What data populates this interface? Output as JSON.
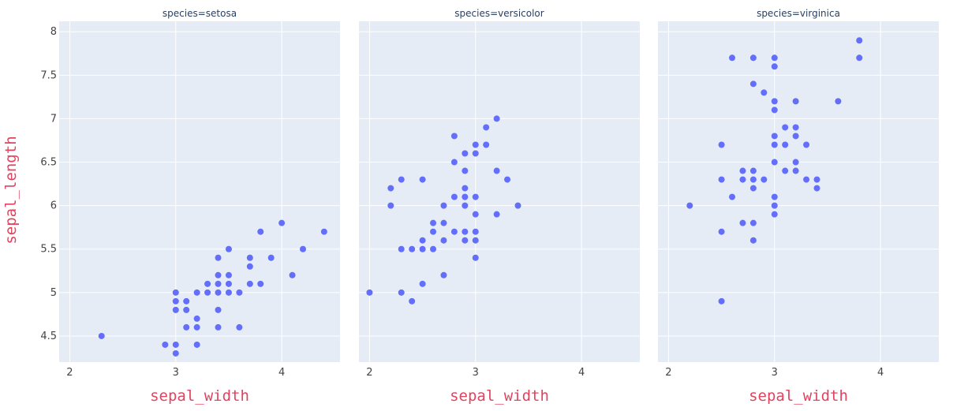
{
  "chart_data": {
    "type": "scatter",
    "xlabel": "sepal_width",
    "ylabel": "sepal_length",
    "xlim": [
      1.9,
      4.55
    ],
    "ylim": [
      4.2,
      8.12
    ],
    "xticks": [
      2,
      3,
      4
    ],
    "yticks": [
      4.5,
      5,
      5.5,
      6,
      6.5,
      7,
      7.5,
      8
    ],
    "ytick_labels": [
      "4.5",
      "5",
      "5.5",
      "6",
      "6.5",
      "7",
      "7.5",
      "8"
    ],
    "marker_color": "#636efa",
    "plot_bg": "#e5ecf6",
    "grid_color": "#ffffff",
    "grid": true,
    "facets": [
      {
        "title": "species=setosa",
        "points": [
          [
            2.3,
            4.5
          ],
          [
            2.9,
            4.4
          ],
          [
            3.0,
            4.4
          ],
          [
            3.0,
            4.3
          ],
          [
            3.2,
            4.4
          ],
          [
            3.0,
            4.8
          ],
          [
            3.0,
            4.9
          ],
          [
            3.0,
            5.0
          ],
          [
            3.1,
            4.9
          ],
          [
            3.1,
            4.8
          ],
          [
            3.1,
            4.6
          ],
          [
            3.2,
            4.6
          ],
          [
            3.2,
            4.7
          ],
          [
            3.2,
            5.0
          ],
          [
            3.3,
            5.0
          ],
          [
            3.3,
            5.1
          ],
          [
            3.4,
            4.6
          ],
          [
            3.4,
            4.8
          ],
          [
            3.4,
            5.0
          ],
          [
            3.4,
            5.1
          ],
          [
            3.4,
            5.2
          ],
          [
            3.4,
            5.4
          ],
          [
            3.5,
            5.0
          ],
          [
            3.5,
            5.1
          ],
          [
            3.5,
            5.2
          ],
          [
            3.5,
            5.5
          ],
          [
            3.6,
            4.6
          ],
          [
            3.6,
            5.0
          ],
          [
            3.7,
            5.1
          ],
          [
            3.7,
            5.3
          ],
          [
            3.7,
            5.4
          ],
          [
            3.8,
            5.1
          ],
          [
            3.8,
            5.7
          ],
          [
            3.9,
            5.4
          ],
          [
            4.0,
            5.8
          ],
          [
            4.1,
            5.2
          ],
          [
            4.2,
            5.5
          ],
          [
            4.4,
            5.7
          ]
        ]
      },
      {
        "title": "species=versicolor",
        "points": [
          [
            2.0,
            5.0
          ],
          [
            2.2,
            6.0
          ],
          [
            2.2,
            6.2
          ],
          [
            2.3,
            5.0
          ],
          [
            2.3,
            5.5
          ],
          [
            2.3,
            6.3
          ],
          [
            2.4,
            4.9
          ],
          [
            2.4,
            5.5
          ],
          [
            2.5,
            5.1
          ],
          [
            2.5,
            5.5
          ],
          [
            2.5,
            5.6
          ],
          [
            2.5,
            6.3
          ],
          [
            2.6,
            5.5
          ],
          [
            2.6,
            5.7
          ],
          [
            2.6,
            5.8
          ],
          [
            2.7,
            5.2
          ],
          [
            2.7,
            5.6
          ],
          [
            2.7,
            5.8
          ],
          [
            2.7,
            6.0
          ],
          [
            2.8,
            5.7
          ],
          [
            2.8,
            6.1
          ],
          [
            2.8,
            6.5
          ],
          [
            2.8,
            6.8
          ],
          [
            2.9,
            5.6
          ],
          [
            2.9,
            5.7
          ],
          [
            2.9,
            6.0
          ],
          [
            2.9,
            6.1
          ],
          [
            2.9,
            6.2
          ],
          [
            2.9,
            6.4
          ],
          [
            2.9,
            6.6
          ],
          [
            3.0,
            5.4
          ],
          [
            3.0,
            5.6
          ],
          [
            3.0,
            5.7
          ],
          [
            3.0,
            5.9
          ],
          [
            3.0,
            6.1
          ],
          [
            3.0,
            6.6
          ],
          [
            3.0,
            6.7
          ],
          [
            3.1,
            6.7
          ],
          [
            3.1,
            6.9
          ],
          [
            3.2,
            5.9
          ],
          [
            3.2,
            6.4
          ],
          [
            3.2,
            7.0
          ],
          [
            3.3,
            6.3
          ],
          [
            3.4,
            6.0
          ]
        ]
      },
      {
        "title": "species=virginica",
        "points": [
          [
            2.2,
            6.0
          ],
          [
            2.5,
            4.9
          ],
          [
            2.5,
            5.7
          ],
          [
            2.5,
            6.3
          ],
          [
            2.5,
            6.7
          ],
          [
            2.6,
            6.1
          ],
          [
            2.6,
            7.7
          ],
          [
            2.7,
            5.8
          ],
          [
            2.7,
            6.3
          ],
          [
            2.7,
            6.4
          ],
          [
            2.8,
            5.6
          ],
          [
            2.8,
            5.8
          ],
          [
            2.8,
            6.2
          ],
          [
            2.8,
            6.3
          ],
          [
            2.8,
            6.4
          ],
          [
            2.8,
            7.4
          ],
          [
            2.8,
            7.7
          ],
          [
            2.9,
            6.3
          ],
          [
            2.9,
            7.3
          ],
          [
            3.0,
            5.9
          ],
          [
            3.0,
            6.0
          ],
          [
            3.0,
            6.1
          ],
          [
            3.0,
            6.5
          ],
          [
            3.0,
            6.7
          ],
          [
            3.0,
            6.8
          ],
          [
            3.0,
            7.1
          ],
          [
            3.0,
            7.2
          ],
          [
            3.0,
            7.6
          ],
          [
            3.0,
            7.7
          ],
          [
            3.1,
            6.4
          ],
          [
            3.1,
            6.7
          ],
          [
            3.1,
            6.9
          ],
          [
            3.2,
            6.4
          ],
          [
            3.2,
            6.5
          ],
          [
            3.2,
            6.8
          ],
          [
            3.2,
            6.9
          ],
          [
            3.2,
            7.2
          ],
          [
            3.3,
            6.3
          ],
          [
            3.3,
            6.7
          ],
          [
            3.4,
            6.2
          ],
          [
            3.4,
            6.3
          ],
          [
            3.6,
            7.2
          ],
          [
            3.8,
            7.7
          ],
          [
            3.8,
            7.9
          ]
        ]
      }
    ]
  }
}
